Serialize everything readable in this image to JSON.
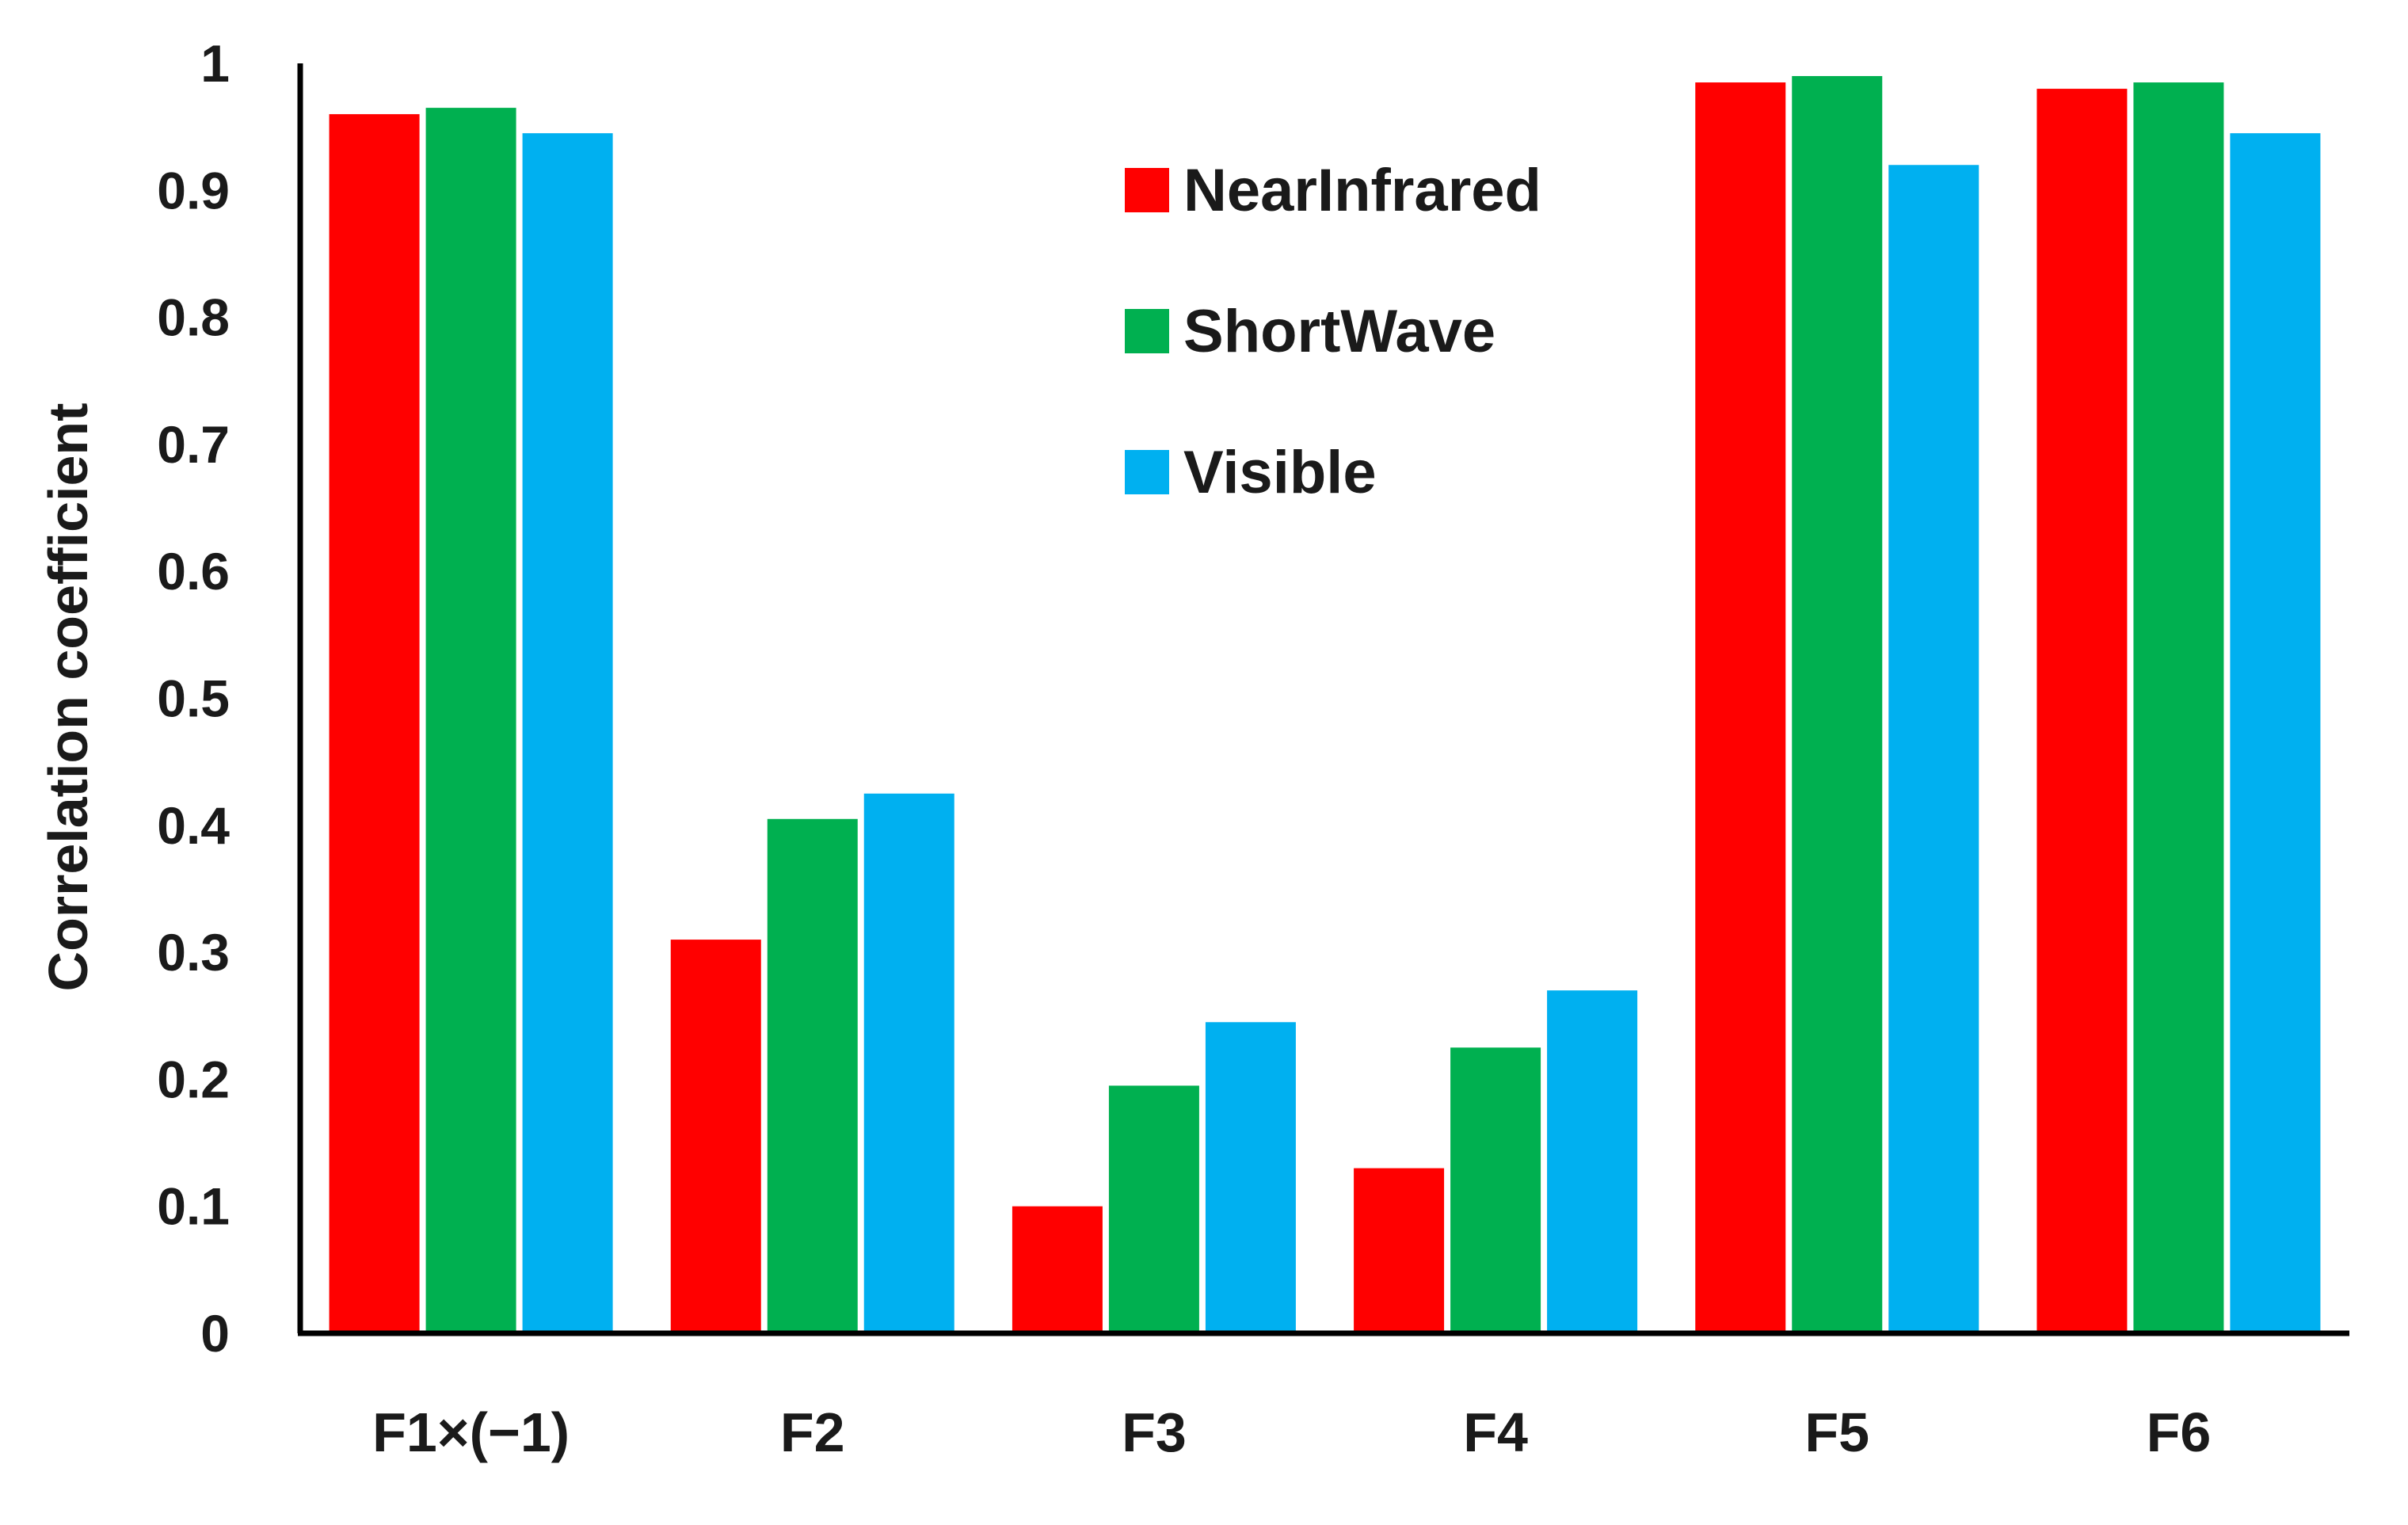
{
  "chart_data": {
    "type": "bar",
    "title": "",
    "xlabel": "",
    "ylabel": "Correlation coefficient",
    "ylim": [
      0,
      1
    ],
    "yticks": [
      0,
      0.1,
      0.2,
      0.3,
      0.4,
      0.5,
      0.6,
      0.7,
      0.8,
      0.9,
      1
    ],
    "ytick_labels": [
      "0",
      "0.1",
      "0.2",
      "0.3",
      "0.4",
      "0.5",
      "0.6",
      "0.7",
      "0.8",
      "0.9",
      "1"
    ],
    "grid": false,
    "legend_position": "top-center",
    "categories": [
      "F1×(−1)",
      "F2",
      "F3",
      "F4",
      "F5",
      "F6"
    ],
    "series": [
      {
        "name": "NearInfrared",
        "color": "#FF0000",
        "values": [
          0.96,
          0.31,
          0.1,
          0.13,
          0.985,
          0.98
        ]
      },
      {
        "name": "ShortWave",
        "color": "#00B050",
        "values": [
          0.965,
          0.405,
          0.195,
          0.225,
          0.99,
          0.985
        ]
      },
      {
        "name": "Visible",
        "color": "#00B0F0",
        "values": [
          0.945,
          0.425,
          0.245,
          0.27,
          0.92,
          0.945
        ]
      }
    ]
  }
}
